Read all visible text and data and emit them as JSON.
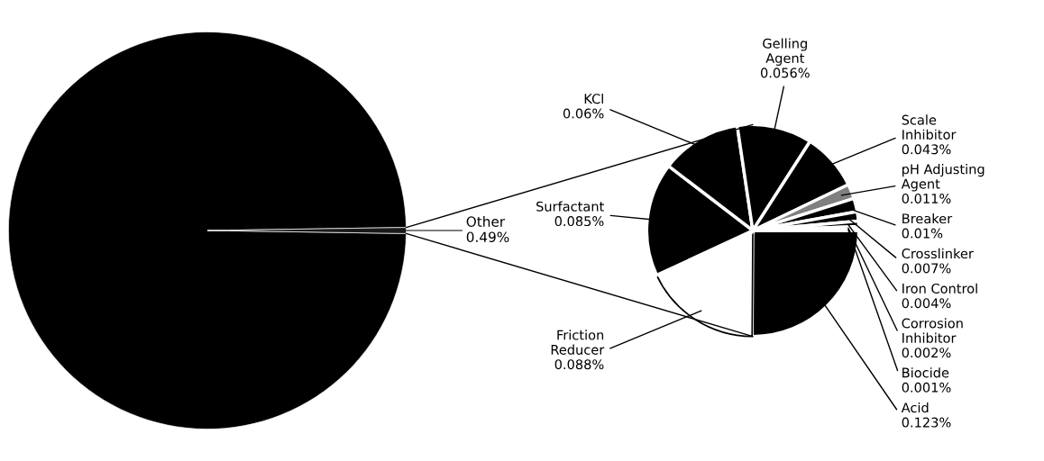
{
  "chart_data": [
    {
      "type": "pie",
      "categories": [
        null,
        "Other"
      ],
      "values": [
        99.51,
        0.49
      ],
      "colors": [
        "#000000",
        "#1a1a1a"
      ],
      "value_labels": [
        null,
        "0.49%"
      ]
    },
    {
      "type": "pie",
      "categories": [
        "Acid",
        "Friction\nReducer",
        "Surfactant",
        "KCl",
        "Gelling\nAgent",
        "Scale\nInhibitor",
        "pH Adjusting\nAgent",
        "Breaker",
        "Crosslinker",
        "Iron Control",
        "Corrosion\nInhibitor",
        "Biocide"
      ],
      "values": [
        0.123,
        0.088,
        0.085,
        0.06,
        0.056,
        0.043,
        0.011,
        0.01,
        0.007,
        0.004,
        0.002,
        0.001
      ],
      "colors": [
        "#000000",
        "#ffffff",
        "#000000",
        "#000000",
        "#000000",
        "#000000",
        "#808080",
        "#000000",
        "#000000",
        "#000000",
        "#000000",
        "#000000"
      ],
      "value_labels": [
        "0.123%",
        "0.088%",
        "0.085%",
        "0.06%",
        "0.056%",
        "0.043%",
        "0.011%",
        "0.01%",
        "0.007%",
        "0.004%",
        "0.002%",
        "0.001%"
      ]
    }
  ]
}
